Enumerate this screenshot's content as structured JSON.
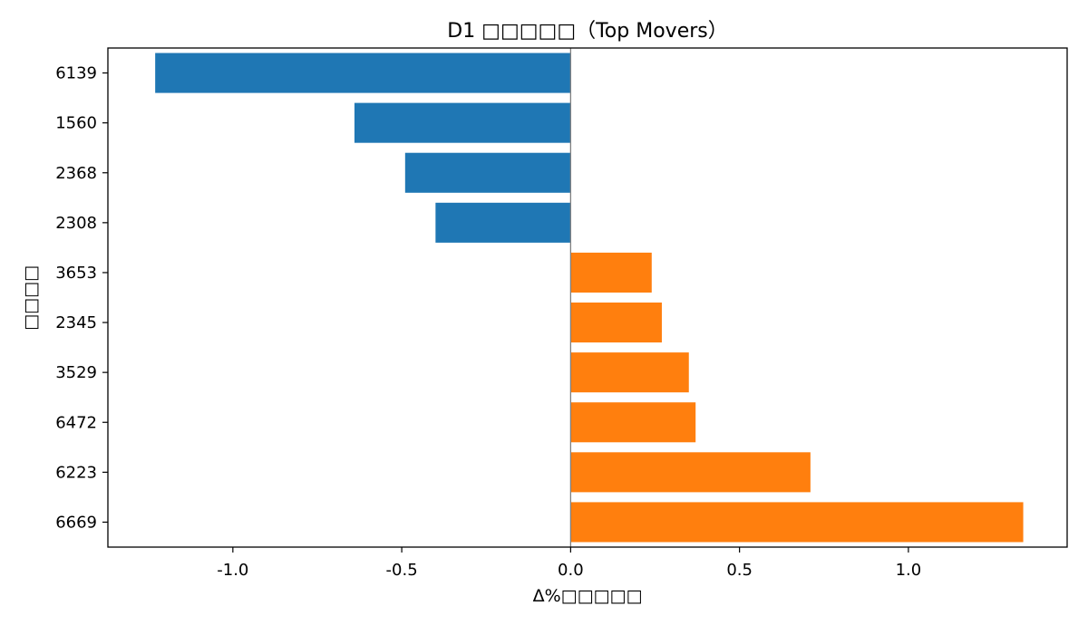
{
  "chart_data": {
    "type": "bar",
    "orientation": "horizontal",
    "title": "D1 □□□□□（Top Movers）",
    "xlabel": "Δ%□□□□□",
    "ylabel": "□□□□",
    "categories": [
      "6139",
      "1560",
      "2368",
      "2308",
      "3653",
      "2345",
      "3529",
      "6472",
      "6223",
      "6669"
    ],
    "values": [
      -1.23,
      -0.64,
      -0.49,
      -0.4,
      0.24,
      0.27,
      0.35,
      0.37,
      0.71,
      1.34
    ],
    "xlim": [
      -1.37,
      1.47
    ],
    "xticks": [
      -1.0,
      -0.5,
      0.0,
      0.5,
      1.0
    ],
    "xtick_labels": [
      "-1.0",
      "-0.5",
      "0.0",
      "0.5",
      "1.0"
    ],
    "colors": {
      "negative": "#1f77b4",
      "positive": "#ff7f0e",
      "zero_line": "#808080"
    },
    "grid": false,
    "legend": "none"
  }
}
